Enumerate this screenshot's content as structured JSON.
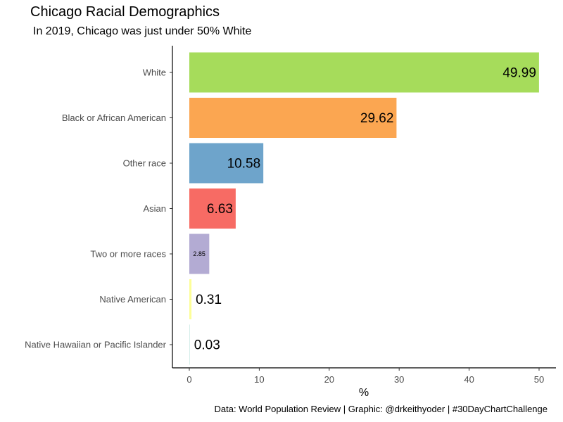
{
  "header": {
    "title": "Chicago Racial Demographics",
    "subtitle": "In 2019, Chicago was just under 50% White"
  },
  "footer": {
    "caption": "Data: World Population Review | Graphic: @drkeithyoder | #30DayChartChallenge"
  },
  "chart_data": {
    "type": "bar",
    "orientation": "horizontal",
    "title": "Chicago Racial Demographics",
    "subtitle": "In 2019, Chicago was just under 50% White",
    "xlabel": "%",
    "ylabel": "",
    "xlim": [
      0,
      52
    ],
    "xticks": [
      0,
      10,
      20,
      30,
      40,
      50
    ],
    "categories": [
      "White",
      "Black or African American",
      "Other race",
      "Asian",
      "Two or more races",
      "Native American",
      "Native Hawaiian or Pacific Islander"
    ],
    "values": [
      49.99,
      29.62,
      10.58,
      6.63,
      2.85,
      0.31,
      0.03
    ],
    "colors": [
      "#a6dc5b",
      "#fba651",
      "#6ea4cb",
      "#f76b64",
      "#b3abd3",
      "#fdfe98",
      "#cceae4"
    ],
    "label_size": [
      "large",
      "large",
      "large",
      "large",
      "small",
      "large",
      "large"
    ],
    "label_position": [
      "inside",
      "inside",
      "inside",
      "inside",
      "inside",
      "outside",
      "outside"
    ]
  }
}
